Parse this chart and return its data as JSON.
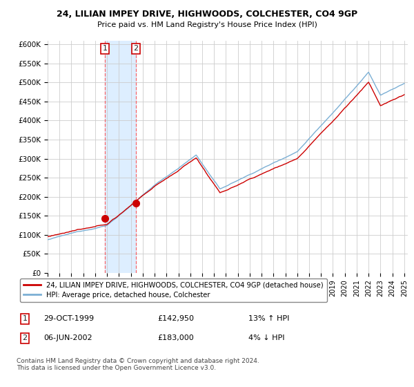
{
  "title": "24, LILIAN IMPEY DRIVE, HIGHWOODS, COLCHESTER, CO4 9GP",
  "subtitle": "Price paid vs. HM Land Registry's House Price Index (HPI)",
  "ylabel_ticks": [
    "£0",
    "£50K",
    "£100K",
    "£150K",
    "£200K",
    "£250K",
    "£300K",
    "£350K",
    "£400K",
    "£450K",
    "£500K",
    "£550K",
    "£600K"
  ],
  "ylim": [
    0,
    600000
  ],
  "ytick_values": [
    0,
    50000,
    100000,
    150000,
    200000,
    250000,
    300000,
    350000,
    400000,
    450000,
    500000,
    550000,
    600000
  ],
  "hpi_color": "#7bafd4",
  "price_color": "#cc0000",
  "sale1_date": 1999.83,
  "sale1_price": 142950,
  "sale2_date": 2002.43,
  "sale2_price": 183000,
  "legend_label1": "24, LILIAN IMPEY DRIVE, HIGHWOODS, COLCHESTER, CO4 9GP (detached house)",
  "legend_label2": "HPI: Average price, detached house, Colchester",
  "table_row1": [
    "1",
    "29-OCT-1999",
    "£142,950",
    "13% ↑ HPI"
  ],
  "table_row2": [
    "2",
    "06-JUN-2002",
    "£183,000",
    "4% ↓ HPI"
  ],
  "footnote": "Contains HM Land Registry data © Crown copyright and database right 2024.\nThis data is licensed under the Open Government Licence v3.0.",
  "bg_color": "#ffffff",
  "grid_color": "#cccccc",
  "span_color": "#ddeeff"
}
